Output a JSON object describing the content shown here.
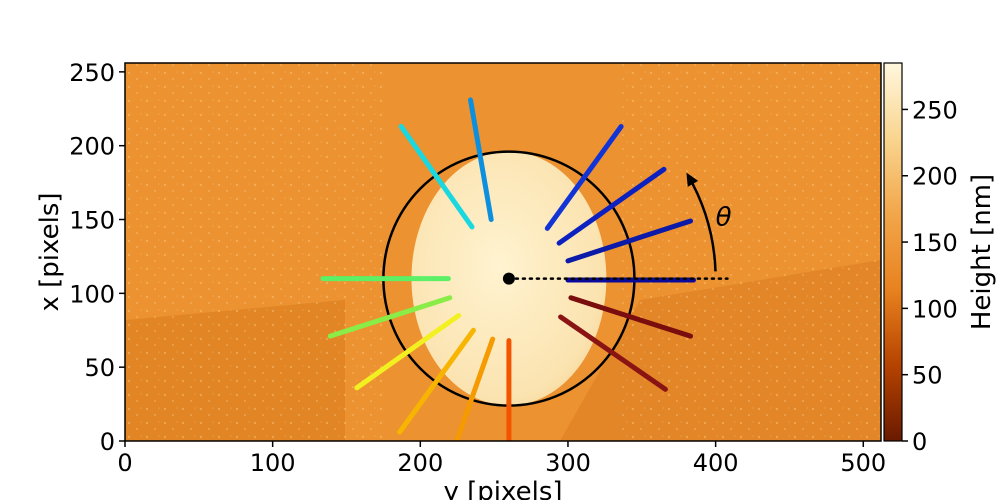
{
  "chart_data": {
    "type": "heatmap",
    "xlabel": "y [pixels]",
    "ylabel": "x [pixels]",
    "xlim": [
      0,
      512
    ],
    "ylim": [
      0,
      256
    ],
    "x_ticks": [
      "0",
      "100",
      "200",
      "300",
      "400",
      "500"
    ],
    "y_ticks": [
      "0",
      "50",
      "100",
      "150",
      "200",
      "250"
    ],
    "colorbar": {
      "label": "Height [nm]",
      "range": [
        0,
        285
      ],
      "ticks": [
        "0",
        "50",
        "100",
        "150",
        "200",
        "250"
      ],
      "colormap": "afmhot",
      "colors": [
        "#6a1a00",
        "#b54300",
        "#e8821f",
        "#f2a64a",
        "#f9d58f",
        "#fff7de"
      ]
    },
    "background": {
      "base_height": 95,
      "pillar_height": 255
    },
    "pillar": {
      "center_y": 260,
      "center_x": 110,
      "radius_x": 66,
      "radius_y": 86
    },
    "circle_fit": {
      "center_y": 260,
      "center_x": 110,
      "radius_x": 85,
      "radius_y": 86
    },
    "center_point": {
      "y": 260,
      "x": 110
    },
    "reference_line": {
      "from": [
        260,
        110
      ],
      "to": [
        408,
        110
      ],
      "style": "dotted"
    },
    "angle_symbol": "θ",
    "angle_arrow": {
      "center": [
        260,
        110
      ],
      "radius": 140,
      "from_deg": 2,
      "to_deg": 30
    },
    "profile_lines": [
      {
        "start": [
          300,
          109
        ],
        "end": [
          385,
          109
        ],
        "color": "#0a0a9a"
      },
      {
        "start": [
          300,
          122
        ],
        "end": [
          383,
          149
        ],
        "color": "#0b1aa8"
      },
      {
        "start": [
          294,
          134
        ],
        "end": [
          365,
          184
        ],
        "color": "#0c21c0"
      },
      {
        "start": [
          286,
          144
        ],
        "end": [
          336,
          213
        ],
        "color": "#1234d6"
      },
      {
        "start": [
          248,
          150
        ],
        "end": [
          234,
          231
        ],
        "color": "#0d8fe0"
      },
      {
        "start": [
          235,
          145
        ],
        "end": [
          187,
          213
        ],
        "color": "#1ad8e0"
      },
      {
        "start": [
          219,
          110
        ],
        "end": [
          134,
          110
        ],
        "color": "#5bf065"
      },
      {
        "start": [
          220,
          97
        ],
        "end": [
          139,
          71
        ],
        "color": "#8aec46"
      },
      {
        "start": [
          226,
          85
        ],
        "end": [
          157,
          36
        ],
        "color": "#f2f020"
      },
      {
        "start": [
          236,
          75
        ],
        "end": [
          186,
          6
        ],
        "color": "#f7b400"
      },
      {
        "start": [
          249,
          69
        ],
        "end": [
          225,
          1
        ],
        "color": "#f59a00"
      },
      {
        "start": [
          260,
          68
        ],
        "end": [
          260,
          0
        ],
        "color": "#f35400"
      },
      {
        "start": [
          302,
          97
        ],
        "end": [
          383,
          71
        ],
        "color": "#7a0d0d"
      },
      {
        "start": [
          295,
          84
        ],
        "end": [
          366,
          35
        ],
        "color": "#8a1414"
      }
    ]
  }
}
